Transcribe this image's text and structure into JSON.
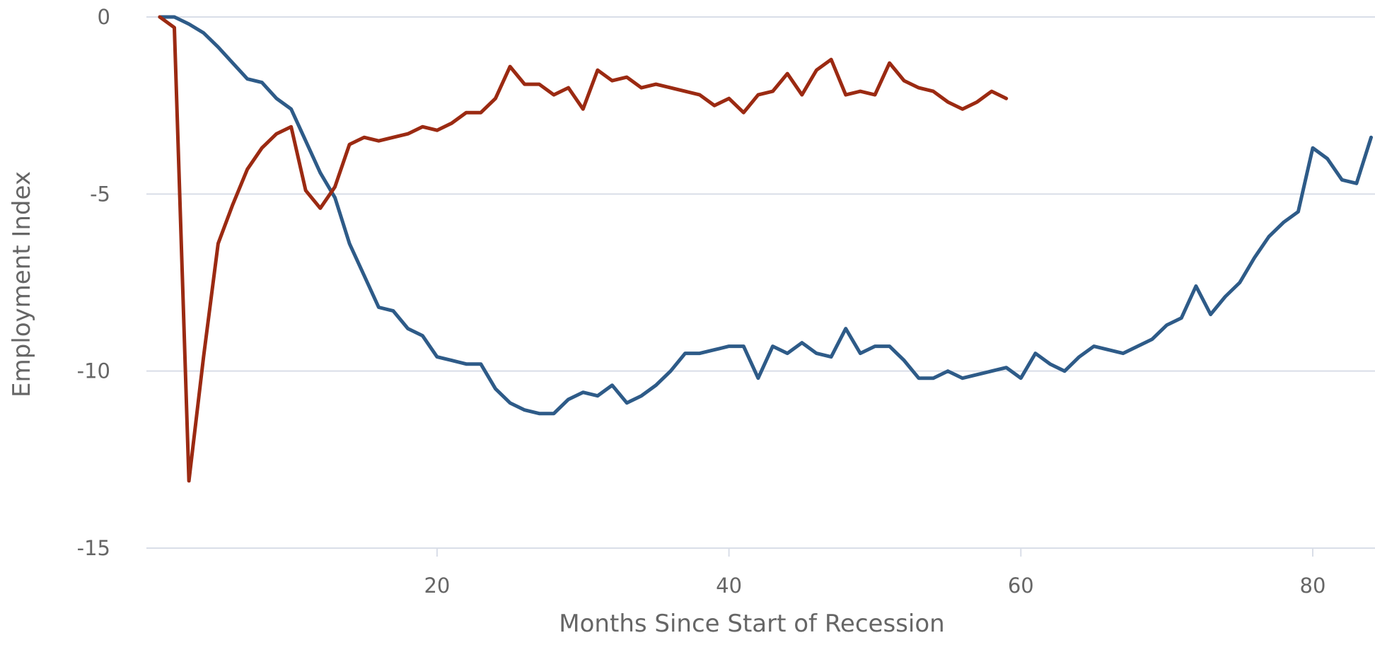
{
  "chart_data": {
    "type": "line",
    "title": "",
    "xlabel": "Months Since Start of Recession",
    "ylabel": "Employment Index",
    "xlim": [
      1,
      86
    ],
    "ylim": [
      -15,
      0
    ],
    "x_ticks": [
      20,
      40,
      60,
      80
    ],
    "y_ticks": [
      0,
      -5,
      -10,
      -15
    ],
    "grid": true,
    "legend": "none",
    "series": [
      {
        "color": "#2e5b88",
        "x": [
          1,
          2,
          3,
          4,
          5,
          6,
          7,
          8,
          9,
          10,
          11,
          12,
          13,
          14,
          15,
          16,
          17,
          18,
          19,
          20,
          21,
          22,
          23,
          24,
          25,
          26,
          27,
          28,
          29,
          30,
          31,
          32,
          33,
          34,
          35,
          36,
          37,
          38,
          39,
          40,
          41,
          42,
          43,
          44,
          45,
          46,
          47,
          48,
          49,
          50,
          51,
          52,
          53,
          54,
          55,
          56,
          57,
          58,
          59,
          60,
          61,
          62,
          63,
          64,
          65,
          66,
          67,
          68,
          69,
          70,
          71,
          72,
          73,
          74,
          75,
          76,
          77,
          78,
          79,
          80,
          81,
          82,
          83,
          84
        ],
        "values": [
          0,
          0,
          -0.2,
          -0.45,
          -0.85,
          -1.3,
          -1.75,
          -1.85,
          -2.3,
          -2.6,
          -3.5,
          -4.4,
          -5.1,
          -6.4,
          -7.3,
          -8.2,
          -8.3,
          -8.8,
          -9.0,
          -9.6,
          -9.7,
          -9.8,
          -9.8,
          -10.5,
          -10.9,
          -11.1,
          -11.2,
          -11.2,
          -10.8,
          -10.6,
          -10.7,
          -10.4,
          -10.9,
          -10.7,
          -10.4,
          -10.0,
          -9.5,
          -9.5,
          -9.4,
          -9.3,
          -9.3,
          -10.2,
          -9.3,
          -9.5,
          -9.2,
          -9.5,
          -9.6,
          -8.8,
          -9.5,
          -9.3,
          -9.3,
          -9.7,
          -10.2,
          -10.2,
          -10.0,
          -10.2,
          -10.1,
          -10.0,
          -9.9,
          -10.2,
          -9.5,
          -9.8,
          -10.0,
          -9.6,
          -9.3,
          -9.4,
          -9.5,
          -9.3,
          -9.1,
          -8.7,
          -8.5,
          -7.6,
          -8.4,
          -7.9,
          -7.5,
          -6.8,
          -6.2,
          -5.8,
          -5.5,
          -3.7,
          -4.0,
          -4.6,
          -4.7,
          -3.4
        ]
      },
      {
        "color": "#9b2a12",
        "x": [
          1,
          2,
          3,
          4,
          5,
          6,
          7,
          8,
          9,
          10,
          11,
          12,
          13,
          14,
          15,
          16,
          17,
          18,
          19,
          20,
          21,
          22,
          23,
          24,
          25,
          26,
          27,
          28,
          29,
          30,
          31,
          32,
          33,
          34,
          35,
          36,
          37,
          38,
          39,
          40,
          41,
          42,
          43,
          44,
          45,
          46,
          47,
          48,
          49,
          50,
          51,
          52,
          53,
          54,
          55,
          56,
          57,
          58,
          59
        ],
        "values": [
          0,
          -0.3,
          -13.1,
          -9.6,
          -6.4,
          -5.3,
          -4.3,
          -3.7,
          -3.3,
          -3.1,
          -4.9,
          -5.4,
          -4.8,
          -3.6,
          -3.4,
          -3.5,
          -3.4,
          -3.3,
          -3.1,
          -3.2,
          -3.0,
          -2.7,
          -2.7,
          -2.3,
          -1.4,
          -1.9,
          -1.9,
          -2.2,
          -2.0,
          -2.6,
          -1.5,
          -1.8,
          -1.7,
          -2.0,
          -1.9,
          -2.0,
          -2.1,
          -2.2,
          -2.5,
          -2.3,
          -2.7,
          -2.2,
          -2.1,
          -1.6,
          -2.2,
          -1.5,
          -1.2,
          -2.2,
          -2.1,
          -2.2,
          -1.3,
          -1.8,
          -2.0,
          -2.1,
          -2.4,
          -2.6,
          -2.4,
          -2.1,
          -2.3
        ]
      }
    ]
  }
}
